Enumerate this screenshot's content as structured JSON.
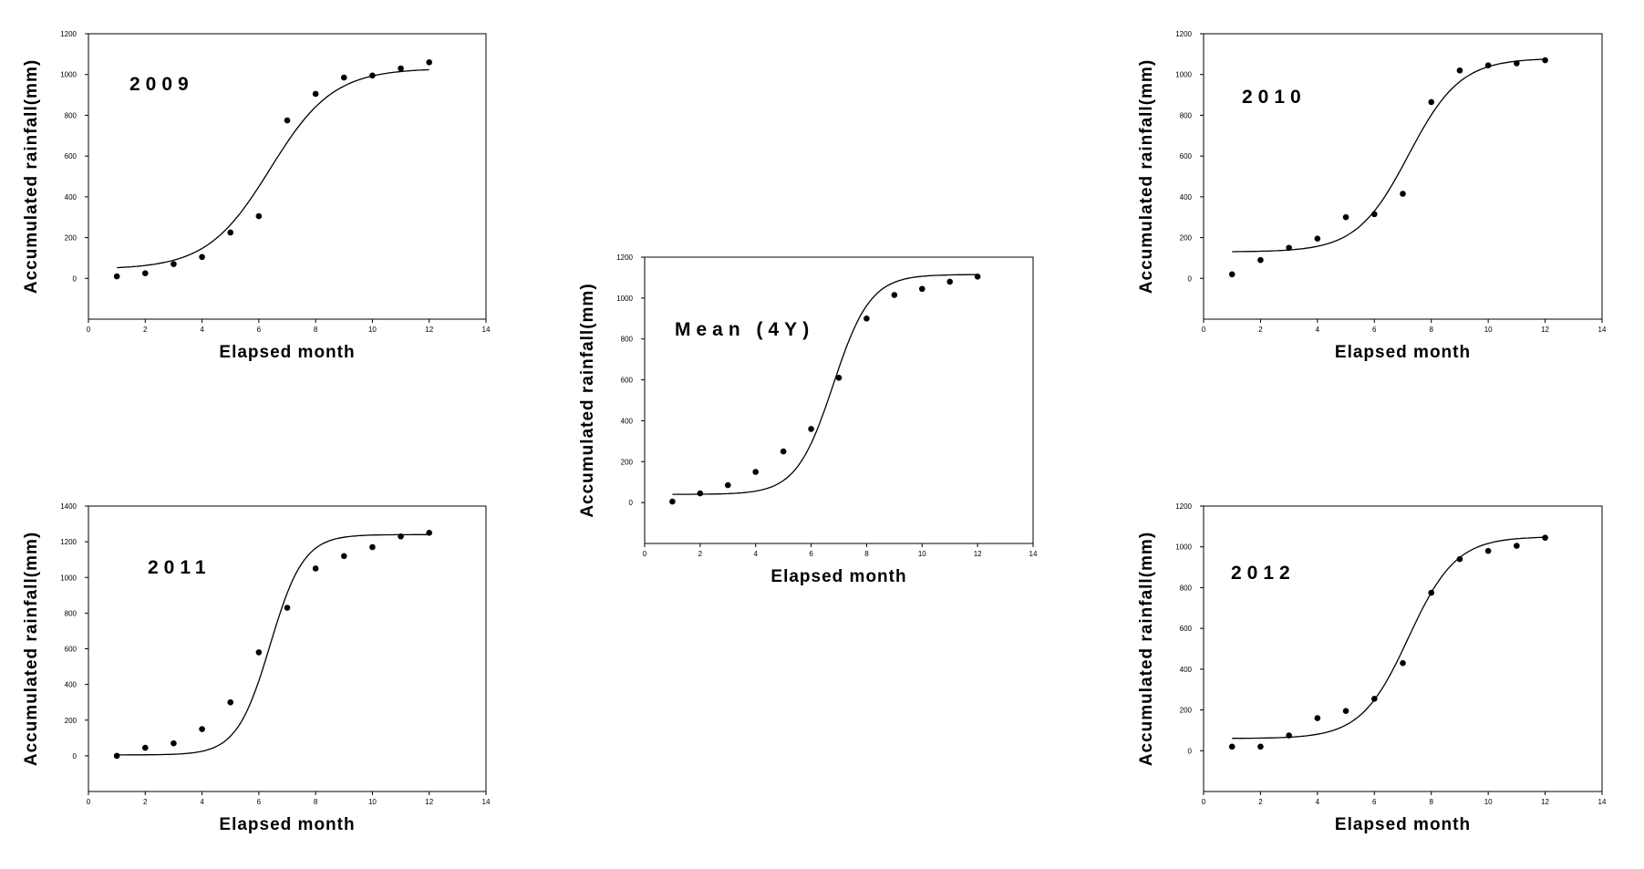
{
  "chart_data": [
    {
      "type": "scatter",
      "label": "2009",
      "xlabel": "Elapsed month",
      "ylabel": "Accumulated rainfall(mm)",
      "xlim": [
        0,
        14
      ],
      "ylim": [
        -200,
        1200
      ],
      "xticks": [
        0,
        2,
        4,
        6,
        8,
        10,
        12,
        14
      ],
      "yticks": [
        0,
        200,
        400,
        600,
        800,
        1000,
        1200
      ],
      "points": {
        "x": [
          1,
          2,
          3,
          4,
          5,
          6,
          7,
          8,
          9,
          10,
          11,
          12
        ],
        "y": [
          10,
          25,
          70,
          105,
          225,
          305,
          775,
          905,
          985,
          995,
          1030,
          1060
        ]
      },
      "fit_curve": {
        "lower": 45,
        "upper": 1030,
        "midpoint": 6.4,
        "slope": 0.45
      }
    },
    {
      "type": "scatter",
      "label": "2010",
      "xlabel": "Elapsed month",
      "ylabel": "Accumulated rainfall(mm)",
      "xlim": [
        0,
        14
      ],
      "ylim": [
        -200,
        1200
      ],
      "xticks": [
        0,
        2,
        4,
        6,
        8,
        10,
        12,
        14
      ],
      "yticks": [
        0,
        200,
        400,
        600,
        800,
        1000,
        1200
      ],
      "points": {
        "x": [
          1,
          2,
          3,
          4,
          5,
          6,
          7,
          8,
          9,
          10,
          11,
          12
        ],
        "y": [
          20,
          90,
          150,
          195,
          300,
          315,
          415,
          865,
          1020,
          1045,
          1055,
          1070
        ]
      },
      "fit_curve": {
        "lower": 130,
        "upper": 1080,
        "midpoint": 7.2,
        "slope": 0.55
      }
    },
    {
      "type": "scatter",
      "label": "Mean (4Y)",
      "xlabel": "Elapsed month",
      "ylabel": "Accumulated rainfall(mm)",
      "xlim": [
        0,
        14
      ],
      "ylim": [
        -200,
        1200
      ],
      "xticks": [
        0,
        2,
        4,
        6,
        8,
        10,
        12,
        14
      ],
      "yticks": [
        0,
        200,
        400,
        600,
        800,
        1000,
        1200
      ],
      "points": {
        "x": [
          1,
          2,
          3,
          4,
          5,
          6,
          7,
          8,
          9,
          10,
          11,
          12
        ],
        "y": [
          5,
          45,
          85,
          150,
          250,
          360,
          610,
          900,
          1015,
          1045,
          1080,
          1105
        ]
      },
      "fit_curve": {
        "lower": 40,
        "upper": 1115,
        "midpoint": 6.8,
        "slope": 0.75
      }
    },
    {
      "type": "scatter",
      "label": "2011",
      "xlabel": "Elapsed month",
      "ylabel": "Accumulated rainfall(mm)",
      "xlim": [
        0,
        14
      ],
      "ylim": [
        -200,
        1400
      ],
      "xticks": [
        0,
        2,
        4,
        6,
        8,
        10,
        12,
        14
      ],
      "yticks": [
        0,
        200,
        400,
        600,
        800,
        1000,
        1200,
        1400
      ],
      "points": {
        "x": [
          1,
          2,
          3,
          4,
          5,
          6,
          7,
          8,
          9,
          10,
          11,
          12
        ],
        "y": [
          0,
          45,
          70,
          150,
          300,
          580,
          830,
          1050,
          1120,
          1170,
          1230,
          1250
        ]
      },
      "fit_curve": {
        "lower": 5,
        "upper": 1240,
        "midpoint": 6.4,
        "slope": 0.85
      }
    },
    {
      "type": "scatter",
      "label": "2012",
      "xlabel": "Elapsed month",
      "ylabel": "Accumulated rainfall(mm)",
      "xlim": [
        0,
        14
      ],
      "ylim": [
        -200,
        1200
      ],
      "xticks": [
        0,
        2,
        4,
        6,
        8,
        10,
        12,
        14
      ],
      "yticks": [
        0,
        200,
        400,
        600,
        800,
        1000,
        1200
      ],
      "points": {
        "x": [
          1,
          2,
          3,
          4,
          5,
          6,
          7,
          8,
          9,
          10,
          11,
          12
        ],
        "y": [
          20,
          20,
          75,
          160,
          195,
          255,
          430,
          775,
          940,
          980,
          1005,
          1045
        ]
      },
      "fit_curve": {
        "lower": 60,
        "upper": 1050,
        "midpoint": 7.2,
        "slope": 0.6
      }
    }
  ]
}
